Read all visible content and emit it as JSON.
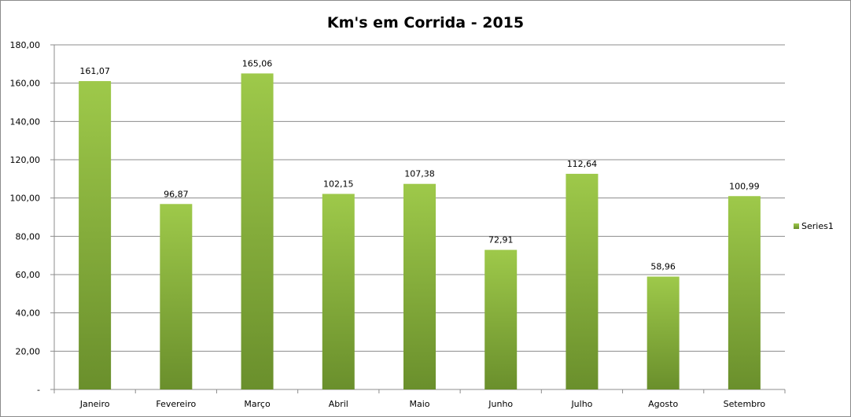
{
  "chart_data": {
    "type": "bar",
    "title": "Km's em Corrida - 2015",
    "xlabel": "",
    "ylabel": "",
    "categories": [
      "Janeiro",
      "Fevereiro",
      "Março",
      "Abril",
      "Maio",
      "Junho",
      "Julho",
      "Agosto",
      "Setembro"
    ],
    "series": [
      {
        "name": "Series1",
        "values": [
          161.07,
          96.87,
          165.06,
          102.15,
          107.38,
          72.91,
          112.64,
          58.96,
          100.99
        ],
        "labels": [
          "161,07",
          "96,87",
          "165,06",
          "102,15",
          "107,38",
          "72,91",
          "112,64",
          "58,96",
          "100,99"
        ]
      }
    ],
    "ylim": [
      0,
      180
    ],
    "ytick_values": [
      0,
      20,
      40,
      60,
      80,
      100,
      120,
      140,
      160,
      180
    ],
    "ytick_labels": [
      "-",
      "20,00",
      "40,00",
      "60,00",
      "80,00",
      "100,00",
      "120,00",
      "140,00",
      "160,00",
      "180,00"
    ],
    "grid": true,
    "legend_position": "right",
    "colors": {
      "bar_top": "#9ec94a",
      "bar_bottom": "#6a8f2c",
      "grid": "#8c8c8c",
      "axis": "#8c8c8c"
    }
  }
}
